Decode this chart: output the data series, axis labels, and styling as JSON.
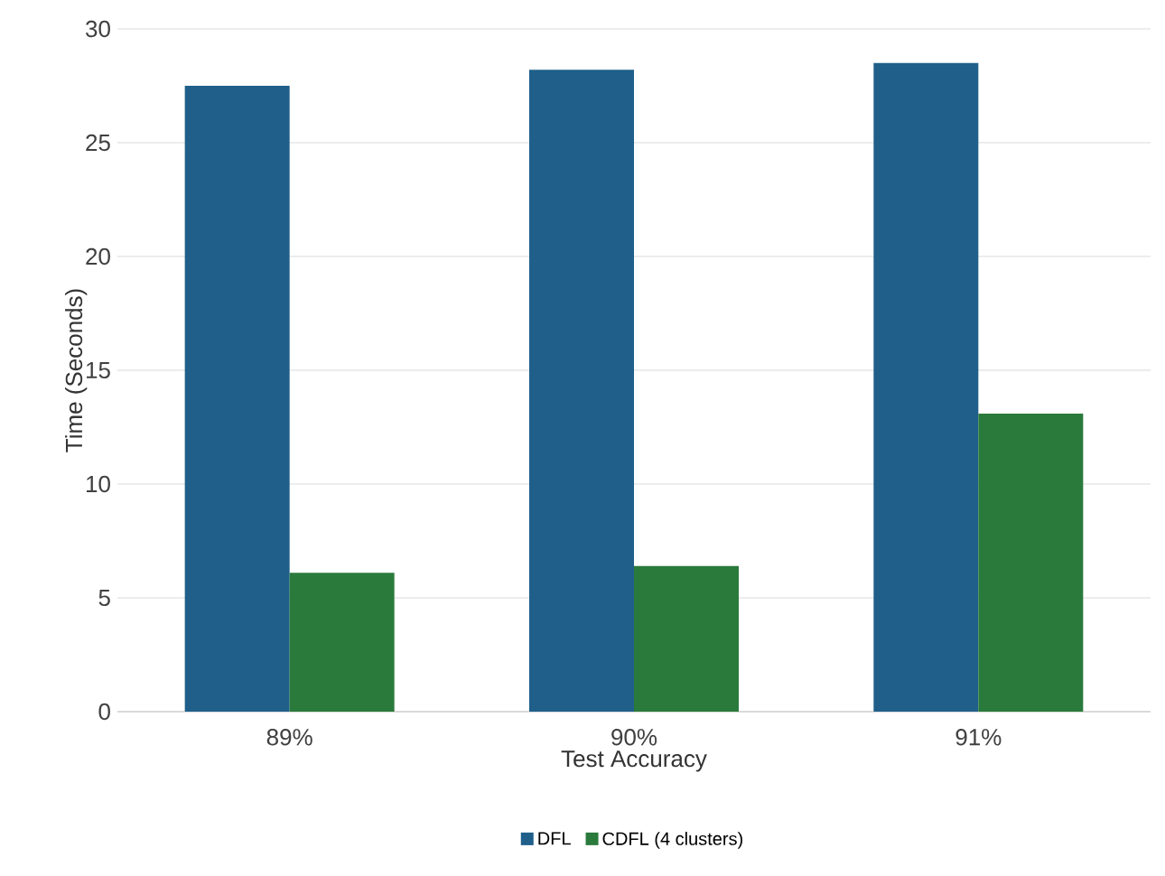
{
  "chart_data": {
    "type": "bar",
    "xlabel": "Test Accuracy",
    "ylabel": "Time (Seconds)",
    "categories": [
      "89%",
      "90%",
      "91%"
    ],
    "series": [
      {
        "name": "DFL",
        "color": "#1f5f8a",
        "values": [
          27.5,
          28.2,
          28.5
        ]
      },
      {
        "name": "CDFL (4 clusters)",
        "color": "#2a7a3c",
        "values": [
          6.1,
          6.4,
          13.1
        ]
      }
    ],
    "ylim": [
      0,
      30
    ],
    "yticks": [
      0,
      5,
      10,
      15,
      20,
      25,
      30
    ],
    "grid": "y",
    "legend": "bottom"
  }
}
